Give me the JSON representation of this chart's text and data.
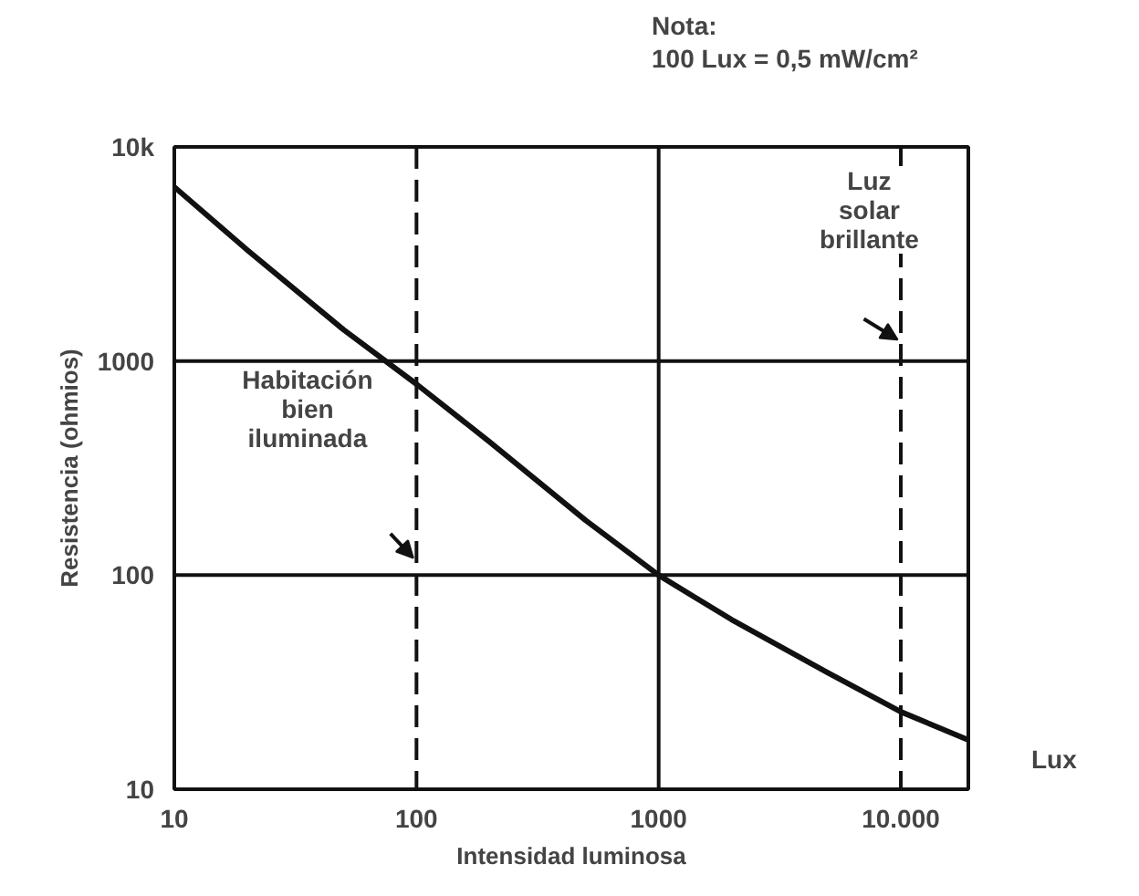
{
  "chart_data": {
    "type": "line",
    "xlabel": "Intensidad luminosa",
    "ylabel": "Resistencia (ohmios)",
    "log": "xy",
    "grid": false,
    "marker": "none",
    "line_style": "solid",
    "xlim": [
      10,
      19000
    ],
    "ylim": [
      10,
      10000
    ],
    "xticks": [
      10,
      100,
      1000,
      {
        "value": 10000,
        "label": "10.000"
      }
    ],
    "yticks": [
      10,
      100,
      1000,
      {
        "value": 10000,
        "label": "10k"
      }
    ],
    "series": [
      {
        "color": "#111111",
        "x": [
          10,
          20,
          50,
          100,
          200,
          500,
          1000,
          2000,
          5000,
          10000,
          19000
        ],
        "values": [
          6500,
          3300,
          1400,
          780,
          420,
          180,
          100,
          62,
          35,
          23,
          17
        ]
      }
    ],
    "ref_lines": [
      {
        "axis": "x",
        "value": 100,
        "label": "Habitación\nbien\niluminada",
        "color": "#111111",
        "line_style": "dashed"
      },
      {
        "axis": "x",
        "value": 1000,
        "color": "#111111",
        "line_style": "solid"
      },
      {
        "axis": "y",
        "value": 1000,
        "color": "#111111",
        "line_style": "solid"
      },
      {
        "axis": "y",
        "value": 100,
        "color": "#111111",
        "line_style": "solid"
      },
      {
        "axis": "x",
        "value": 10000,
        "label": "Luz\nsolar\nbrillante",
        "color": "#111111",
        "line_style": "dashed"
      }
    ],
    "annotations": [
      "Nota:\n100 Lux = 0,5 mW/cm²",
      "Lux"
    ]
  }
}
